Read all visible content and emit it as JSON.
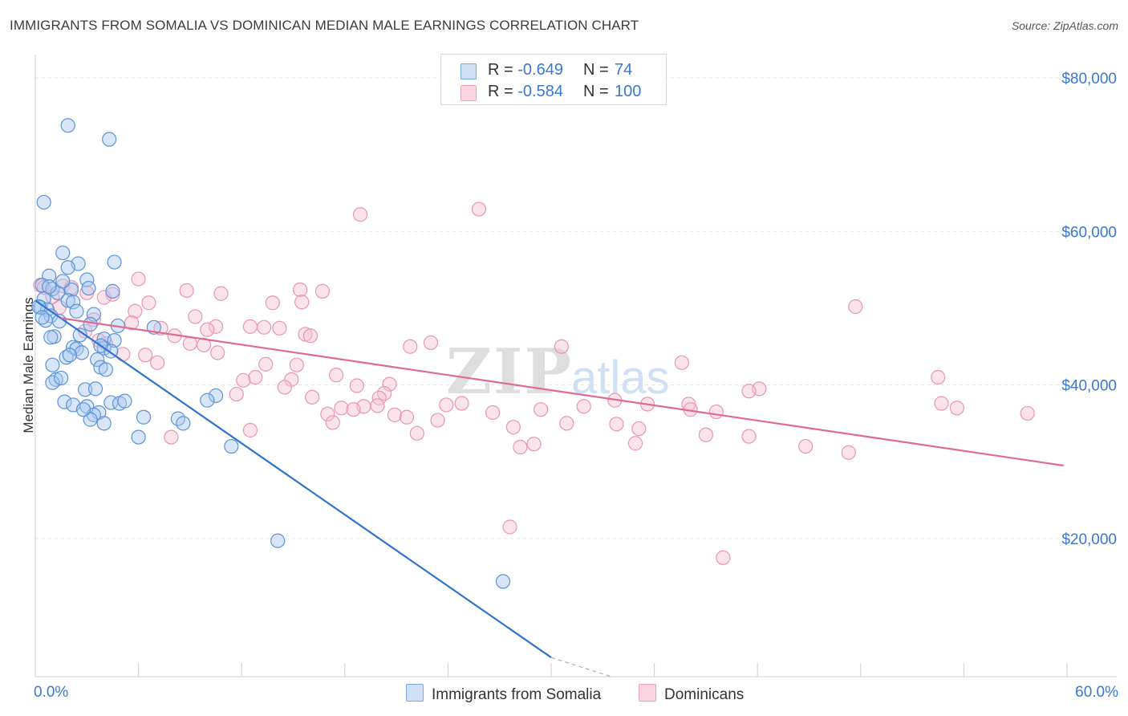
{
  "header": {
    "title": "IMMIGRANTS FROM SOMALIA VS DOMINICAN MEDIAN MALE EARNINGS CORRELATION CHART",
    "source": "Source: ZipAtlas.com"
  },
  "stats_legend": [
    {
      "r_label": "R =",
      "r_value": "-0.649",
      "n_label": "N =",
      "n_value": "74",
      "color": "#a8c8f0"
    },
    {
      "r_label": "R =",
      "r_value": "-0.584",
      "n_label": "N =",
      "n_value": "100",
      "color": "#f7b6cb"
    }
  ],
  "watermark": {
    "zip": "ZIP",
    "atlas": "atlas"
  },
  "colors": {
    "somalia_fill": "#a8c8f0",
    "somalia_stroke": "#5b93d8",
    "somalia_line": "#2f74d0",
    "dominican_fill": "#f7c1d2",
    "dominican_stroke": "#e896b0",
    "dominican_line": "#e06a92",
    "tick_label": "#3a78d0",
    "grid": "#e3e3e3"
  },
  "chart_data": {
    "type": "scatter",
    "xlabel": "",
    "ylabel": "Median Male Earnings",
    "xlim": [
      0,
      60
    ],
    "ylim": [
      2000,
      84000
    ],
    "x_tick_labels": [
      "0.0%",
      "60.0%"
    ],
    "y_ticks": [
      20000,
      40000,
      60000,
      80000
    ],
    "y_tick_labels": [
      "$20,000",
      "$40,000",
      "$60,000",
      "$80,000"
    ],
    "grid": true,
    "legend_position": "bottom",
    "series": [
      {
        "name": "Immigrants from Somalia",
        "trend": {
          "x": [
            0.0,
            30.0
          ],
          "y": [
            51000,
            4500
          ],
          "dashed_extension_to": [
            33.5,
            0
          ]
        },
        "points": [
          [
            1.9,
            73800
          ],
          [
            4.3,
            72000
          ],
          [
            0.5,
            63800
          ],
          [
            4.6,
            56000
          ],
          [
            1.6,
            57200
          ],
          [
            2.5,
            55800
          ],
          [
            1.9,
            55300
          ],
          [
            0.8,
            54200
          ],
          [
            3.0,
            53700
          ],
          [
            0.4,
            53000
          ],
          [
            1.0,
            52500
          ],
          [
            3.1,
            52600
          ],
          [
            2.1,
            52400
          ],
          [
            1.3,
            52000
          ],
          [
            0.5,
            51200
          ],
          [
            1.9,
            51000
          ],
          [
            2.2,
            50800
          ],
          [
            0.3,
            50100
          ],
          [
            0.7,
            49800
          ],
          [
            0.9,
            49000
          ],
          [
            3.4,
            49200
          ],
          [
            0.6,
            48400
          ],
          [
            1.4,
            48300
          ],
          [
            3.2,
            47900
          ],
          [
            4.8,
            47700
          ],
          [
            6.9,
            47500
          ],
          [
            1.1,
            46300
          ],
          [
            2.6,
            46500
          ],
          [
            4.0,
            46000
          ],
          [
            4.6,
            45800
          ],
          [
            2.2,
            44900
          ],
          [
            4.0,
            44800
          ],
          [
            2.4,
            44700
          ],
          [
            4.4,
            44400
          ],
          [
            2.7,
            44200
          ],
          [
            1.8,
            43600
          ],
          [
            3.6,
            43300
          ],
          [
            1.0,
            42600
          ],
          [
            3.8,
            42300
          ],
          [
            4.1,
            42000
          ],
          [
            1.2,
            40700
          ],
          [
            1.0,
            40300
          ],
          [
            2.9,
            39400
          ],
          [
            3.5,
            39500
          ],
          [
            10.5,
            38600
          ],
          [
            1.7,
            37800
          ],
          [
            4.4,
            37700
          ],
          [
            4.9,
            37600
          ],
          [
            2.2,
            37400
          ],
          [
            3.0,
            37200
          ],
          [
            10.0,
            38000
          ],
          [
            3.7,
            36400
          ],
          [
            3.4,
            36100
          ],
          [
            6.3,
            35800
          ],
          [
            8.3,
            35600
          ],
          [
            3.2,
            35500
          ],
          [
            4.0,
            35000
          ],
          [
            8.6,
            35000
          ],
          [
            6.0,
            33200
          ],
          [
            11.4,
            32000
          ],
          [
            14.1,
            19700
          ],
          [
            27.2,
            14400
          ],
          [
            0.2,
            50200
          ],
          [
            0.8,
            52800
          ],
          [
            1.6,
            53500
          ],
          [
            2.4,
            49600
          ],
          [
            0.4,
            48800
          ],
          [
            3.8,
            45100
          ],
          [
            1.5,
            40900
          ],
          [
            2.8,
            36800
          ],
          [
            5.2,
            37900
          ],
          [
            0.9,
            46200
          ],
          [
            2.0,
            43900
          ],
          [
            4.5,
            52200
          ]
        ]
      },
      {
        "name": "Dominicans",
        "trend": {
          "x": [
            1.5,
            59.8
          ],
          "y": [
            48700,
            29500
          ]
        },
        "points": [
          [
            18.9,
            62200
          ],
          [
            25.8,
            62900
          ],
          [
            0.3,
            53000
          ],
          [
            0.5,
            52700
          ],
          [
            1.6,
            52900
          ],
          [
            2.1,
            52700
          ],
          [
            6.0,
            53800
          ],
          [
            8.8,
            52300
          ],
          [
            3.0,
            52000
          ],
          [
            10.8,
            51900
          ],
          [
            15.4,
            52400
          ],
          [
            16.7,
            52200
          ],
          [
            4.5,
            51800
          ],
          [
            4.0,
            51400
          ],
          [
            6.6,
            50700
          ],
          [
            13.8,
            50700
          ],
          [
            1.4,
            50100
          ],
          [
            5.8,
            49600
          ],
          [
            9.3,
            48900
          ],
          [
            47.7,
            50200
          ],
          [
            3.4,
            48500
          ],
          [
            5.6,
            48100
          ],
          [
            7.3,
            47400
          ],
          [
            10.5,
            47600
          ],
          [
            12.5,
            47600
          ],
          [
            13.3,
            47500
          ],
          [
            14.2,
            47400
          ],
          [
            10.0,
            47200
          ],
          [
            15.7,
            46600
          ],
          [
            16.0,
            46400
          ],
          [
            8.1,
            46400
          ],
          [
            3.7,
            45800
          ],
          [
            4.1,
            45400
          ],
          [
            9.0,
            45400
          ],
          [
            9.8,
            45200
          ],
          [
            23.0,
            45500
          ],
          [
            30.6,
            45000
          ],
          [
            21.8,
            45000
          ],
          [
            5.1,
            44000
          ],
          [
            10.6,
            44200
          ],
          [
            6.4,
            43900
          ],
          [
            7.1,
            42900
          ],
          [
            13.4,
            42700
          ],
          [
            15.2,
            42600
          ],
          [
            37.6,
            42900
          ],
          [
            17.5,
            41300
          ],
          [
            12.8,
            41000
          ],
          [
            12.1,
            40600
          ],
          [
            14.9,
            40700
          ],
          [
            20.6,
            40100
          ],
          [
            18.7,
            39900
          ],
          [
            14.5,
            39700
          ],
          [
            20.3,
            38900
          ],
          [
            42.1,
            39500
          ],
          [
            41.5,
            39200
          ],
          [
            11.7,
            38800
          ],
          [
            16.1,
            38400
          ],
          [
            20.0,
            38300
          ],
          [
            23.9,
            37400
          ],
          [
            24.8,
            37600
          ],
          [
            33.7,
            38000
          ],
          [
            35.6,
            37500
          ],
          [
            31.9,
            37200
          ],
          [
            38.0,
            37500
          ],
          [
            19.9,
            37300
          ],
          [
            19.1,
            37200
          ],
          [
            17.8,
            37000
          ],
          [
            18.5,
            36800
          ],
          [
            29.4,
            36800
          ],
          [
            38.1,
            36800
          ],
          [
            39.6,
            36500
          ],
          [
            26.6,
            36400
          ],
          [
            17.0,
            36200
          ],
          [
            20.9,
            36100
          ],
          [
            21.6,
            35800
          ],
          [
            57.7,
            36300
          ],
          [
            23.4,
            35400
          ],
          [
            17.3,
            35100
          ],
          [
            30.9,
            35000
          ],
          [
            33.8,
            34900
          ],
          [
            27.8,
            34500
          ],
          [
            35.1,
            34300
          ],
          [
            12.5,
            34100
          ],
          [
            22.2,
            33700
          ],
          [
            39.0,
            33500
          ],
          [
            41.5,
            33300
          ],
          [
            7.9,
            33200
          ],
          [
            29.0,
            32300
          ],
          [
            34.9,
            32400
          ],
          [
            28.2,
            31900
          ],
          [
            44.8,
            32000
          ],
          [
            47.3,
            31200
          ],
          [
            27.6,
            21500
          ],
          [
            40.0,
            17500
          ],
          [
            52.5,
            41000
          ],
          [
            52.7,
            37600
          ],
          [
            53.6,
            37000
          ],
          [
            1.0,
            51500
          ],
          [
            2.9,
            47000
          ],
          [
            15.5,
            50800
          ]
        ]
      }
    ]
  },
  "bottom_legend": [
    {
      "label": "Immigrants from Somalia",
      "color": "#a8c8f0"
    },
    {
      "label": "Dominicans",
      "color": "#f7c1d2"
    }
  ]
}
